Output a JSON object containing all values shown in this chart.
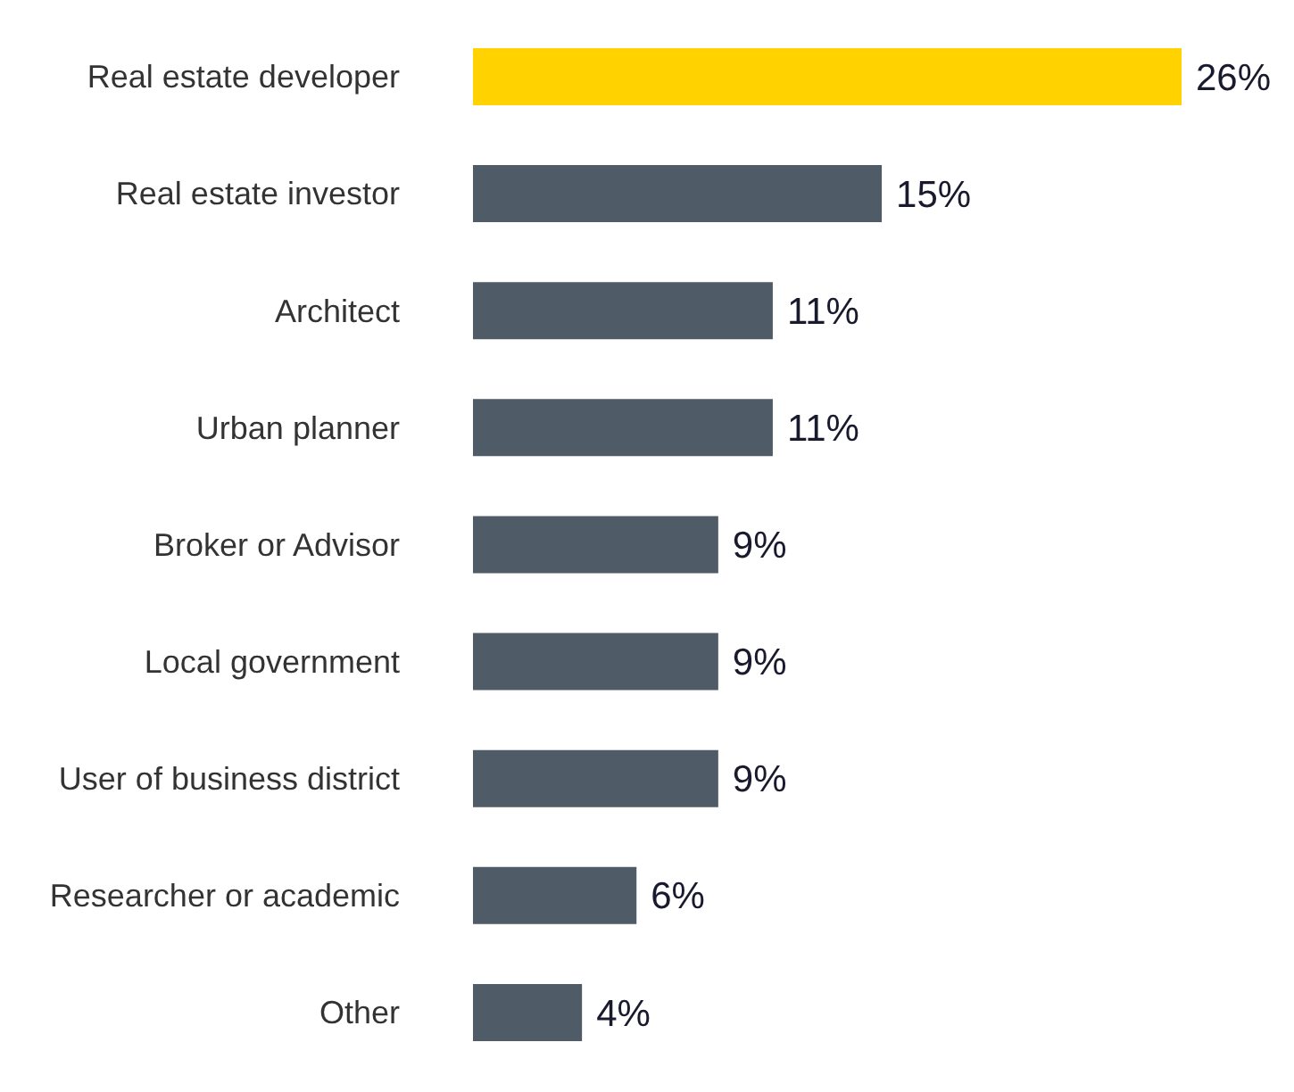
{
  "chart_data": {
    "type": "bar",
    "orientation": "horizontal",
    "categories": [
      "Real estate developer",
      "Real estate investor",
      "Architect",
      "Urban planner",
      "Broker or Advisor",
      "Local government",
      "User of business district",
      "Researcher or academic",
      "Other"
    ],
    "values": [
      26,
      15,
      11,
      11,
      9,
      9,
      9,
      6,
      4
    ],
    "colors": [
      "#ffd200",
      "#4f5b66",
      "#4f5b66",
      "#4f5b66",
      "#4f5b66",
      "#4f5b66",
      "#4f5b66",
      "#4f5b66",
      "#4f5b66"
    ],
    "value_labels": [
      "26%",
      "15%",
      "11%",
      "11%",
      "9%",
      "9%",
      "9%",
      "6%",
      "4%"
    ],
    "tick_labels": "y",
    "grid": false,
    "legend": false
  }
}
